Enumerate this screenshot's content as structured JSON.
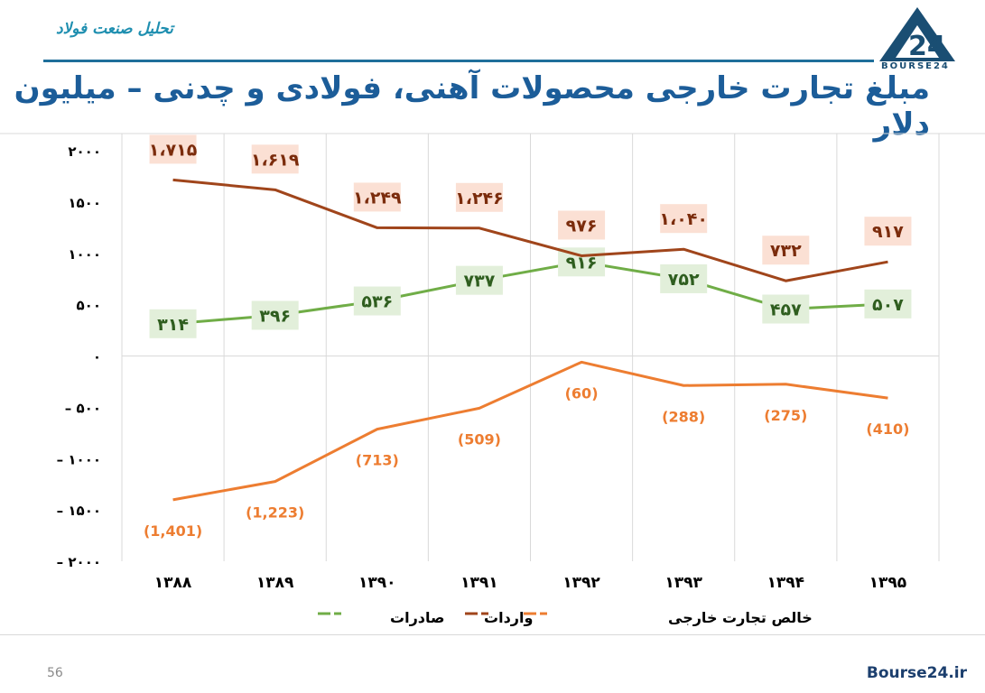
{
  "header": {
    "tag": "تحلیل صنعت فولاد",
    "title": "مبلغ تجارت خارجی محصولات آهنی، فولادی و چدنی – میلیون دلار",
    "logo_text": "BOURSE24"
  },
  "footer": {
    "page_number": "56",
    "site": "Bourse24.ir"
  },
  "chart_data": {
    "type": "line",
    "title": "مبلغ تجارت خارجی محصولات آهنی، فولادی و چدنی – میلیون دلار",
    "categories": [
      "۱۳۸۸",
      "۱۳۸۹",
      "۱۳۹۰",
      "۱۳۹۱",
      "۱۳۹۲",
      "۱۳۹۳",
      "۱۳۹۴",
      "۱۳۹۵"
    ],
    "ylim": [
      -2000,
      2000
    ],
    "yticks": [
      2000,
      1500,
      1000,
      500,
      0,
      -500,
      -1000,
      -1500,
      -2000
    ],
    "ytick_labels": [
      "۲۰۰۰",
      "۱۵۰۰",
      "۱۰۰۰",
      "۵۰۰",
      "۰",
      "– ۵۰۰",
      "– ۱۰۰۰",
      "– ۱۵۰۰",
      "– ۲۰۰۰"
    ],
    "grid": "vertical",
    "legend_position": "bottom",
    "series": [
      {
        "name": "صادرات",
        "color": "#70ad47",
        "label_bg": "#e2efda",
        "values": [
          314,
          396,
          536,
          737,
          916,
          752,
          457,
          507
        ],
        "labels": [
          "۳۱۴",
          "۳۹۶",
          "۵۳۶",
          "۷۳۷",
          "۹۱۶",
          "۷۵۲",
          "۴۵۷",
          "۵۰۷"
        ]
      },
      {
        "name": "واردات",
        "color": "#a0451b",
        "label_bg": "#fbe0d4",
        "values": [
          1715,
          1619,
          1249,
          1246,
          976,
          1040,
          732,
          917
        ],
        "labels": [
          "۱،۷۱۵",
          "۱،۶۱۹",
          "۱،۲۴۹",
          "۱،۲۴۶",
          "۹۷۶",
          "۱،۰۴۰",
          "۷۳۲",
          "۹۱۷"
        ]
      },
      {
        "name": "خالص تجارت خارجی",
        "color": "#ed7d31",
        "label_bg": "",
        "values": [
          -1401,
          -1223,
          -713,
          -509,
          -60,
          -288,
          -275,
          -410
        ],
        "labels": [
          "(1,401)",
          "(1,223)",
          "(713)",
          "(509)",
          "(60)",
          "(288)",
          "(275)",
          "(410)"
        ]
      }
    ]
  }
}
